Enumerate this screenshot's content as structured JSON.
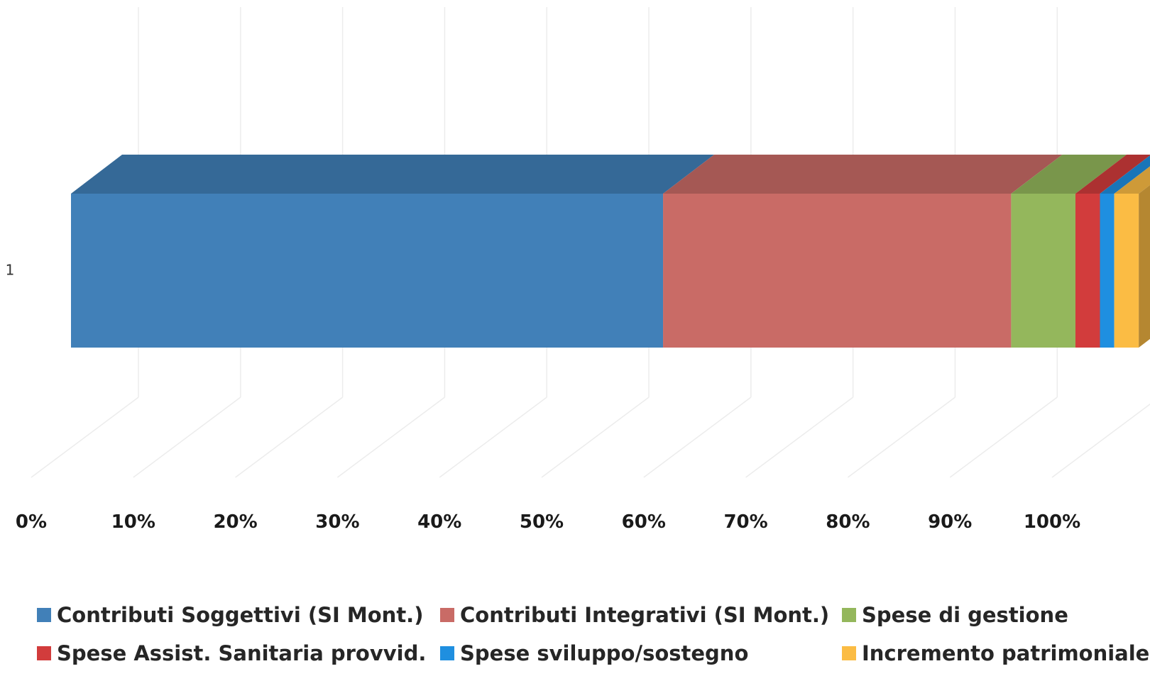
{
  "chart_data": {
    "type": "bar",
    "orientation": "horizontal",
    "stacked": "percent",
    "three_d": true,
    "categories": [
      "1"
    ],
    "xlim": [
      0,
      100
    ],
    "x_ticks": [
      "0%",
      "10%",
      "20%",
      "30%",
      "40%",
      "50%",
      "60%",
      "70%",
      "80%",
      "90%",
      "100%"
    ],
    "grid": true,
    "legend_position": "bottom",
    "title": "",
    "xlabel": "",
    "ylabel": "",
    "series": [
      {
        "name": "Contributi Soggettivi (SI Mont.)",
        "values": [
          58.0
        ],
        "color": "#4180b8"
      },
      {
        "name": "Contributi Integrativi (SI Mont.)",
        "values": [
          34.1
        ],
        "color": "#c96b66"
      },
      {
        "name": "Spese di gestione",
        "values": [
          6.3
        ],
        "color": "#94b75c"
      },
      {
        "name": "Spese Assist. Sanitaria provvid.",
        "values": [
          2.4
        ],
        "color": "#d23c3c"
      },
      {
        "name": "Spese sviluppo/sostegno",
        "values": [
          1.4
        ],
        "color": "#1f8fe0"
      },
      {
        "name": "Incremento patrimoniale",
        "values": [
          2.4
        ],
        "color": "#fbbc44"
      }
    ]
  }
}
